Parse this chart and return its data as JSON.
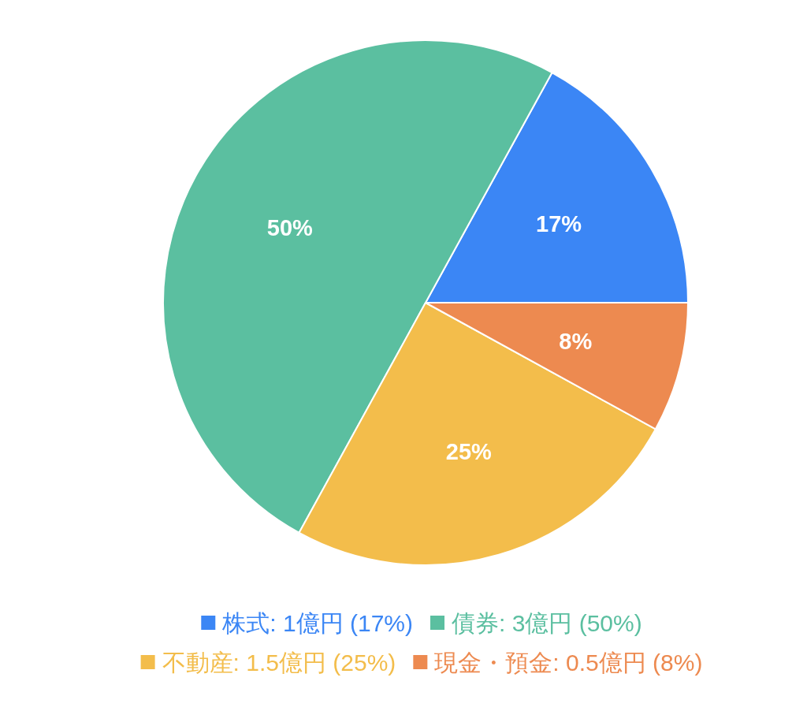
{
  "chart_data": {
    "type": "pie",
    "categories": [
      "株式: 1億円 (17%)",
      "債券: 3億円 (50%)",
      "不動産: 1.5億円 (25%)",
      "現金・預金: 0.5億円 (8%)"
    ],
    "values": [
      17,
      50,
      25,
      8
    ],
    "colors": [
      "#3b86f5",
      "#5bbfa0",
      "#f3bd4b",
      "#ed8a50"
    ],
    "value_labels": [
      "17%",
      "50%",
      "25%",
      "8%"
    ],
    "legend": "bottom"
  }
}
